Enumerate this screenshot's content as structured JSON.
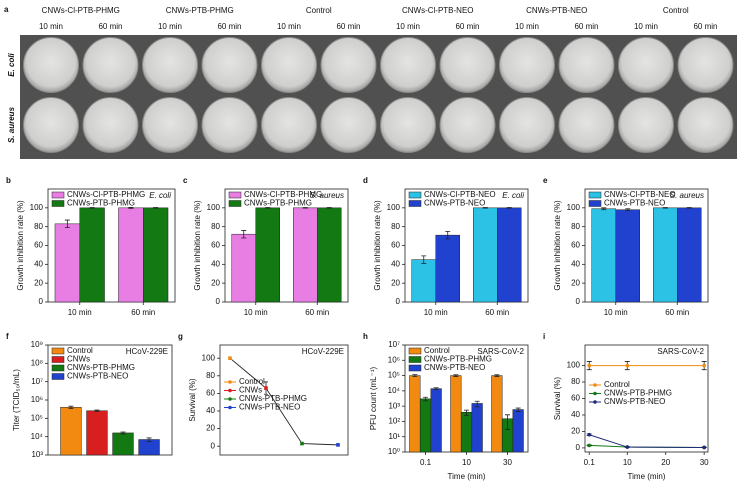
{
  "photo_panel": {
    "label": "a",
    "groups": [
      "CNWs-Cl-PTB-PHMG",
      "CNWs-PTB-PHMG",
      "Control",
      "CNWs-Cl-PTB-NEO",
      "CNWs-PTB-NEO",
      "Control"
    ],
    "times": [
      "10 min",
      "60 min",
      "10 min",
      "60 min",
      "10 min",
      "60 min",
      "10 min",
      "60 min",
      "10 min",
      "60 min",
      "10 min",
      "60 min"
    ],
    "rows": [
      "E. coli",
      "S. aureus"
    ]
  },
  "chart_data": [
    {
      "type": "bar",
      "label": "b",
      "ylabel": "Growth inhibition rate (%)",
      "annotation": "E. coli",
      "annotation_style": "italic",
      "categories": [
        "10 min",
        "60 min"
      ],
      "series": [
        {
          "name": "CNWs-Cl-PTB-PHMG",
          "color": "#e87de3",
          "values": [
            83,
            100
          ],
          "errors": [
            4,
            0.5
          ]
        },
        {
          "name": "CNWs-PTB-PHMG",
          "color": "#137a13",
          "values": [
            100,
            100
          ],
          "errors": [
            0.3,
            0.3
          ]
        }
      ],
      "ylim": [
        0,
        120
      ],
      "yticks": [
        0,
        20,
        40,
        60,
        80,
        100
      ],
      "legend": "upper left"
    },
    {
      "type": "bar",
      "label": "c",
      "ylabel": "Growth inhibition rate (%)",
      "annotation": "S. aureus",
      "annotation_style": "italic",
      "categories": [
        "10 min",
        "60 min"
      ],
      "series": [
        {
          "name": "CNWs-Cl-PTB-PHMG",
          "color": "#e87de3",
          "values": [
            72,
            100
          ],
          "errors": [
            4,
            0.3
          ]
        },
        {
          "name": "CNWs-PTB-PHMG",
          "color": "#137a13",
          "values": [
            100,
            100
          ],
          "errors": [
            0.3,
            0.3
          ]
        }
      ],
      "ylim": [
        0,
        120
      ],
      "yticks": [
        0,
        20,
        40,
        60,
        80,
        100
      ],
      "legend": "upper left"
    },
    {
      "type": "bar",
      "label": "d",
      "ylabel": "Growth inhibition rate (%)",
      "annotation": "E. coli",
      "annotation_style": "italic",
      "categories": [
        "10 min",
        "60 min"
      ],
      "series": [
        {
          "name": "CNWs-Cl-PTB-NEO",
          "color": "#2cc2e6",
          "values": [
            45,
            100
          ],
          "errors": [
            4,
            0.3
          ]
        },
        {
          "name": "CNWs-PTB-NEO",
          "color": "#2141cf",
          "values": [
            71,
            100
          ],
          "errors": [
            4,
            0.3
          ]
        }
      ],
      "ylim": [
        0,
        120
      ],
      "yticks": [
        0,
        20,
        40,
        60,
        80,
        100
      ],
      "legend": "upper left"
    },
    {
      "type": "bar",
      "label": "e",
      "ylabel": "Growth inhibition rate (%)",
      "annotation": "S. aureus",
      "annotation_style": "italic",
      "categories": [
        "10 min",
        "60 min"
      ],
      "series": [
        {
          "name": "CNWs-Cl-PTB-NEO",
          "color": "#2cc2e6",
          "values": [
            99,
            100
          ],
          "errors": [
            1,
            0.3
          ]
        },
        {
          "name": "CNWs-PTB-NEO",
          "color": "#2141cf",
          "values": [
            98,
            100
          ],
          "errors": [
            1,
            0.3
          ]
        }
      ],
      "ylim": [
        0,
        120
      ],
      "yticks": [
        0,
        20,
        40,
        60,
        80,
        100
      ],
      "legend": "upper left"
    },
    {
      "type": "bar",
      "label": "f",
      "ylabel": "Titer (TCID₅₀/mL)",
      "annotation": "HCoV-229E",
      "annotation_style": "normal",
      "categories": [
        null
      ],
      "yscale": "log",
      "series": [
        {
          "name": "Control",
          "color": "#f28a12",
          "values": [
            400000
          ],
          "errors": [
            60000
          ]
        },
        {
          "name": "CNWs",
          "color": "#d81e1e",
          "values": [
            260000
          ],
          "errors": [
            25000
          ]
        },
        {
          "name": "CNWs-PTB-PHMG",
          "color": "#137a13",
          "values": [
            16000
          ],
          "errors": [
            2000
          ]
        },
        {
          "name": "CNWs-PTB-NEO",
          "color": "#2141cf",
          "values": [
            7000
          ],
          "errors": [
            1500
          ]
        }
      ],
      "ylim": [
        1000,
        1000000000
      ],
      "yticks": [
        {
          "value": 1000,
          "label": "10³"
        },
        {
          "value": 10000,
          "label": "10⁴"
        },
        {
          "value": 100000,
          "label": "10⁵"
        },
        {
          "value": 1000000,
          "label": "10⁶"
        },
        {
          "value": 10000000,
          "label": "10⁷"
        },
        {
          "value": 100000000,
          "label": "10⁸"
        },
        {
          "value": 1000000000,
          "label": "10⁹"
        }
      ],
      "legend": "upper left"
    },
    {
      "type": "point-line",
      "label": "g",
      "ylabel": "Survival (%)",
      "annotation": "HCoV-229E",
      "annotation_style": "normal",
      "categories": [
        null,
        null,
        null,
        null
      ],
      "values": [
        100,
        66,
        3,
        1.5
      ],
      "errors": [
        0,
        7,
        0,
        0
      ],
      "point_names": [
        "Control",
        "CNWs",
        "CNWs-PTB-PHMG",
        "CNWs-PTB-NEO"
      ],
      "point_colors": [
        "#f28a12",
        "#d81e1e",
        "#137a13",
        "#2141cf"
      ],
      "line_color": "#222222",
      "ylim": [
        -10,
        115
      ],
      "yticks": [
        0,
        20,
        40,
        60,
        80,
        100
      ],
      "legend": "center left"
    },
    {
      "type": "bar",
      "label": "h",
      "ylabel": "PFU count (mL⁻¹)",
      "xlabel": "Time (min)",
      "annotation": "SARS-CoV-2",
      "annotation_style": "normal",
      "categories": [
        "0.1",
        "10",
        "30"
      ],
      "yscale": "log",
      "series": [
        {
          "name": "Control",
          "color": "#f28a12",
          "values": [
            100000,
            100000,
            100000
          ],
          "errors": [
            15000,
            12000,
            12000
          ]
        },
        {
          "name": "CNWs-PTB-PHMG",
          "color": "#137a13",
          "values": [
            3000,
            400,
            150
          ],
          "errors": [
            800,
            150,
            120
          ]
        },
        {
          "name": "CNWs-PTB-NEO",
          "color": "#2141cf",
          "values": [
            14000,
            1500,
            600
          ],
          "errors": [
            2000,
            600,
            150
          ]
        }
      ],
      "ylim": [
        1,
        10000000
      ],
      "yticks": [
        {
          "value": 1,
          "label": "10⁰"
        },
        {
          "value": 10,
          "label": "10¹"
        },
        {
          "value": 100,
          "label": "10²"
        },
        {
          "value": 1000,
          "label": "10³"
        },
        {
          "value": 10000,
          "label": "10⁴"
        },
        {
          "value": 100000,
          "label": "10⁵"
        },
        {
          "value": 1000000,
          "label": "10⁶"
        },
        {
          "value": 10000000,
          "label": "10⁷"
        }
      ],
      "legend": "upper left"
    },
    {
      "type": "line",
      "label": "i",
      "ylabel": "Survival (%)",
      "xlabel": "Time (min)",
      "annotation": "SARS-CoV-2",
      "annotation_style": "normal",
      "x": [
        0.1,
        10,
        30
      ],
      "series": [
        {
          "name": "Control",
          "color": "#f28a12",
          "values": [
            100,
            100,
            100
          ],
          "errors": [
            5,
            5,
            5
          ]
        },
        {
          "name": "CNWs-PTB-PHMG",
          "color": "#137a13",
          "values": [
            3,
            1,
            0.5
          ],
          "errors": [
            0.5,
            0.3,
            0.2
          ]
        },
        {
          "name": "CNWs-PTB-NEO",
          "color": "#1e2a7a",
          "values": [
            16,
            1,
            0.5
          ],
          "errors": [
            1,
            0.3,
            0.2
          ]
        }
      ],
      "xlim": [
        -1,
        31
      ],
      "xticks": [
        0.1,
        10,
        20,
        30
      ],
      "ylim": [
        -5,
        125
      ],
      "yticks": [
        0,
        20,
        40,
        60,
        80,
        100
      ],
      "legend": "center left"
    }
  ]
}
